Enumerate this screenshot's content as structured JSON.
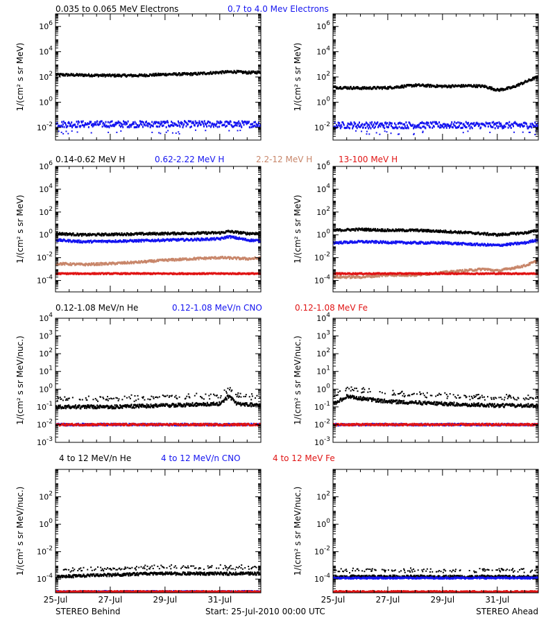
{
  "colors": {
    "black": "#000000",
    "blue": "#1414f0",
    "salmon": "#c8866a",
    "red": "#e01414"
  },
  "footer": {
    "left": "STEREO Behind",
    "center": "Start: 25-Jul-2010 00:00 UTC",
    "right": "STEREO Ahead"
  },
  "x_ticks": [
    "25-Jul",
    "27-Jul",
    "29-Jul",
    "31-Jul"
  ],
  "x_range_days": [
    0,
    7.5
  ],
  "chart_data": [
    {
      "type": "scatter",
      "row_title": [
        {
          "text": "0.035 to 0.065 MeV Electrons",
          "color": "black"
        },
        {
          "text": "0.7 to 4.0 Mev Electrons",
          "color": "blue"
        }
      ],
      "ylabel": "1/(cm² s sr MeV)",
      "yscale": "log",
      "ylim_exp": [
        -3,
        7
      ],
      "ytick_exps": [
        -2,
        0,
        2,
        4,
        6
      ],
      "panels": [
        {
          "spacecraft": "STEREO Behind",
          "series": [
            {
              "name": "0.035 to 0.065 MeV Electrons",
              "color": "black",
              "x": [
                0,
                1,
                2,
                3,
                4,
                5,
                5.5,
                6,
                6.5,
                7,
                7.5
              ],
              "y": [
                150,
                140,
                130,
                130,
                160,
                170,
                200,
                230,
                260,
                220,
                240
              ]
            },
            {
              "name": "0.7 to 4.0 Mev Electrons",
              "color": "blue",
              "x": [
                0,
                7.5
              ],
              "y": [
                0.018,
                0.018
              ]
            }
          ]
        },
        {
          "spacecraft": "STEREO Ahead",
          "series": [
            {
              "name": "0.035 to 0.065 MeV Electrons",
              "color": "black",
              "x": [
                0,
                1,
                2,
                3,
                4,
                5,
                5.5,
                6,
                6.5,
                7,
                7.5
              ],
              "y": [
                15,
                13,
                14,
                22,
                18,
                20,
                18,
                9,
                14,
                40,
                110
              ]
            },
            {
              "name": "0.7 to 4.0 Mev Electrons",
              "color": "blue",
              "x": [
                0,
                7.5
              ],
              "y": [
                0.015,
                0.015
              ]
            }
          ]
        }
      ]
    },
    {
      "type": "scatter",
      "row_title": [
        {
          "text": "0.14-0.62 MeV H",
          "color": "black"
        },
        {
          "text": "0.62-2.22 MeV H",
          "color": "blue"
        },
        {
          "text": "2.2-12 MeV H",
          "color": "salmon"
        },
        {
          "text": "13-100 MeV H",
          "color": "red"
        }
      ],
      "ylabel": "1/(cm² s sr MeV)",
      "yscale": "log",
      "ylim_exp": [
        -5,
        6
      ],
      "ytick_exps": [
        -4,
        -2,
        0,
        2,
        4,
        6
      ],
      "panels": [
        {
          "spacecraft": "STEREO Behind",
          "series": [
            {
              "name": "0.14-0.62 MeV H",
              "color": "black",
              "x": [
                0,
                1,
                2,
                3,
                4,
                5,
                6,
                6.3,
                7,
                7.5
              ],
              "y": [
                1.3,
                1.0,
                1.1,
                1.2,
                1.3,
                1.4,
                1.5,
                2.0,
                1.3,
                1.4
              ]
            },
            {
              "name": "0.62-2.22 MeV H",
              "color": "blue",
              "x": [
                0,
                1,
                2,
                3,
                4,
                5,
                6,
                6.3,
                7,
                7.5
              ],
              "y": [
                0.35,
                0.25,
                0.28,
                0.3,
                0.35,
                0.38,
                0.45,
                0.7,
                0.35,
                0.3
              ]
            },
            {
              "name": "2.2-12 MeV H",
              "color": "salmon",
              "x": [
                0,
                1,
                2,
                3,
                4,
                5,
                6,
                7,
                7.5
              ],
              "y": [
                0.003,
                0.0025,
                0.003,
                0.004,
                0.006,
                0.008,
                0.01,
                0.008,
                0.009
              ]
            },
            {
              "name": "13-100 MeV H",
              "color": "red",
              "x": [
                0,
                7.5
              ],
              "y": [
                0.0004,
                0.0004
              ]
            }
          ]
        },
        {
          "spacecraft": "STEREO Ahead",
          "series": [
            {
              "name": "0.14-0.62 MeV H",
              "color": "black",
              "x": [
                0,
                1,
                2,
                3,
                4,
                5,
                6,
                7,
                7.5
              ],
              "y": [
                2.5,
                3.0,
                2.5,
                2.5,
                2.0,
                1.5,
                1.0,
                1.5,
                2.5
              ]
            },
            {
              "name": "0.62-2.22 MeV H",
              "color": "blue",
              "x": [
                0,
                1,
                2,
                3,
                4,
                5,
                6,
                7,
                7.5
              ],
              "y": [
                0.2,
                0.25,
                0.22,
                0.2,
                0.2,
                0.15,
                0.12,
                0.2,
                0.4
              ]
            },
            {
              "name": "2.2-12 MeV H",
              "color": "salmon",
              "x": [
                0,
                1,
                2,
                3,
                4,
                5,
                5.5,
                6,
                7,
                7.5
              ],
              "y": [
                0.0002,
                0.0002,
                0.0003,
                0.0003,
                0.0005,
                0.0008,
                0.001,
                0.0007,
                0.002,
                0.006
              ]
            },
            {
              "name": "13-100 MeV H",
              "color": "red",
              "x": [
                0,
                7.5
              ],
              "y": [
                0.0004,
                0.0004
              ]
            }
          ]
        }
      ]
    },
    {
      "type": "scatter",
      "row_title": [
        {
          "text": "0.12-1.08 MeV/n He",
          "color": "black"
        },
        {
          "text": "0.12-1.08 MeV/n CNO",
          "color": "blue"
        },
        {
          "text": "0.12-1.08 MeV Fe",
          "color": "red"
        }
      ],
      "ylabel": "1/(cm² s sr MeV/nuc.)",
      "yscale": "log",
      "ylim_exp": [
        -3,
        4
      ],
      "ytick_exps": [
        -3,
        -2,
        -1,
        0,
        1,
        2,
        3,
        4
      ],
      "panels": [
        {
          "spacecraft": "STEREO Behind",
          "series": [
            {
              "name": "0.12-1.08 MeV/n He",
              "color": "black",
              "x": [
                0,
                2,
                4,
                6,
                6.3,
                6.6,
                7.5
              ],
              "y": [
                0.1,
                0.1,
                0.12,
                0.15,
                0.4,
                0.15,
                0.12
              ]
            },
            {
              "name": "0.12-1.08 MeV/n CNO",
              "color": "blue",
              "x": [
                0,
                7.5
              ],
              "y": [
                0.01,
                0.01
              ]
            },
            {
              "name": "0.12-1.08 MeV Fe",
              "color": "red",
              "x": [
                0,
                7.5
              ],
              "y": [
                0.01,
                0.01
              ]
            }
          ]
        },
        {
          "spacecraft": "STEREO Ahead",
          "series": [
            {
              "name": "0.12-1.08 MeV/n He",
              "color": "black",
              "x": [
                0,
                0.5,
                1,
                2,
                4,
                6,
                7.5
              ],
              "y": [
                0.15,
                0.4,
                0.3,
                0.2,
                0.15,
                0.12,
                0.12
              ]
            },
            {
              "name": "0.12-1.08 MeV/n CNO",
              "color": "blue",
              "x": [
                0,
                7.5
              ],
              "y": [
                0.01,
                0.01
              ]
            },
            {
              "name": "0.12-1.08 MeV Fe",
              "color": "red",
              "x": [
                0,
                7.5
              ],
              "y": [
                0.01,
                0.01
              ]
            }
          ]
        }
      ]
    },
    {
      "type": "scatter",
      "row_title": [
        {
          "text": "4 to 12 MeV/n He",
          "color": "black"
        },
        {
          "text": "4 to 12 MeV/n CNO",
          "color": "blue"
        },
        {
          "text": "4 to 12 MeV Fe",
          "color": "red"
        }
      ],
      "ylabel": "1/(cm² s sr MeV/nuc.)",
      "yscale": "log",
      "ylim_exp": [
        -5,
        4
      ],
      "ytick_exps": [
        -4,
        -2,
        0,
        2
      ],
      "panels": [
        {
          "spacecraft": "STEREO Behind",
          "series": [
            {
              "name": "4 to 12 MeV/n He",
              "color": "black",
              "x": [
                0,
                3.5,
                7.5
              ],
              "y": [
                0.00015,
                0.00025,
                0.00025
              ]
            },
            {
              "name": "4 to 12 MeV/n CNO",
              "color": "blue",
              "x": [
                0,
                7.5
              ],
              "y": [
                1.2e-05,
                1.2e-05
              ]
            },
            {
              "name": "4 to 12 MeV Fe",
              "color": "red",
              "x": [
                0,
                7.5
              ],
              "y": [
                1.2e-05,
                1.2e-05
              ]
            }
          ]
        },
        {
          "spacecraft": "STEREO Ahead",
          "series": [
            {
              "name": "4 to 12 MeV/n He",
              "color": "black",
              "x": [
                0,
                7.5
              ],
              "y": [
                0.00015,
                0.00015
              ]
            },
            {
              "name": "4 to 12 MeV/n CNO",
              "color": "blue",
              "x": [
                0,
                7.5
              ],
              "y": [
                0.00012,
                0.00012
              ]
            },
            {
              "name": "4 to 12 MeV Fe",
              "color": "red",
              "x": [
                0,
                7.5
              ],
              "y": [
                1.2e-05,
                1.2e-05
              ]
            }
          ]
        }
      ]
    }
  ]
}
